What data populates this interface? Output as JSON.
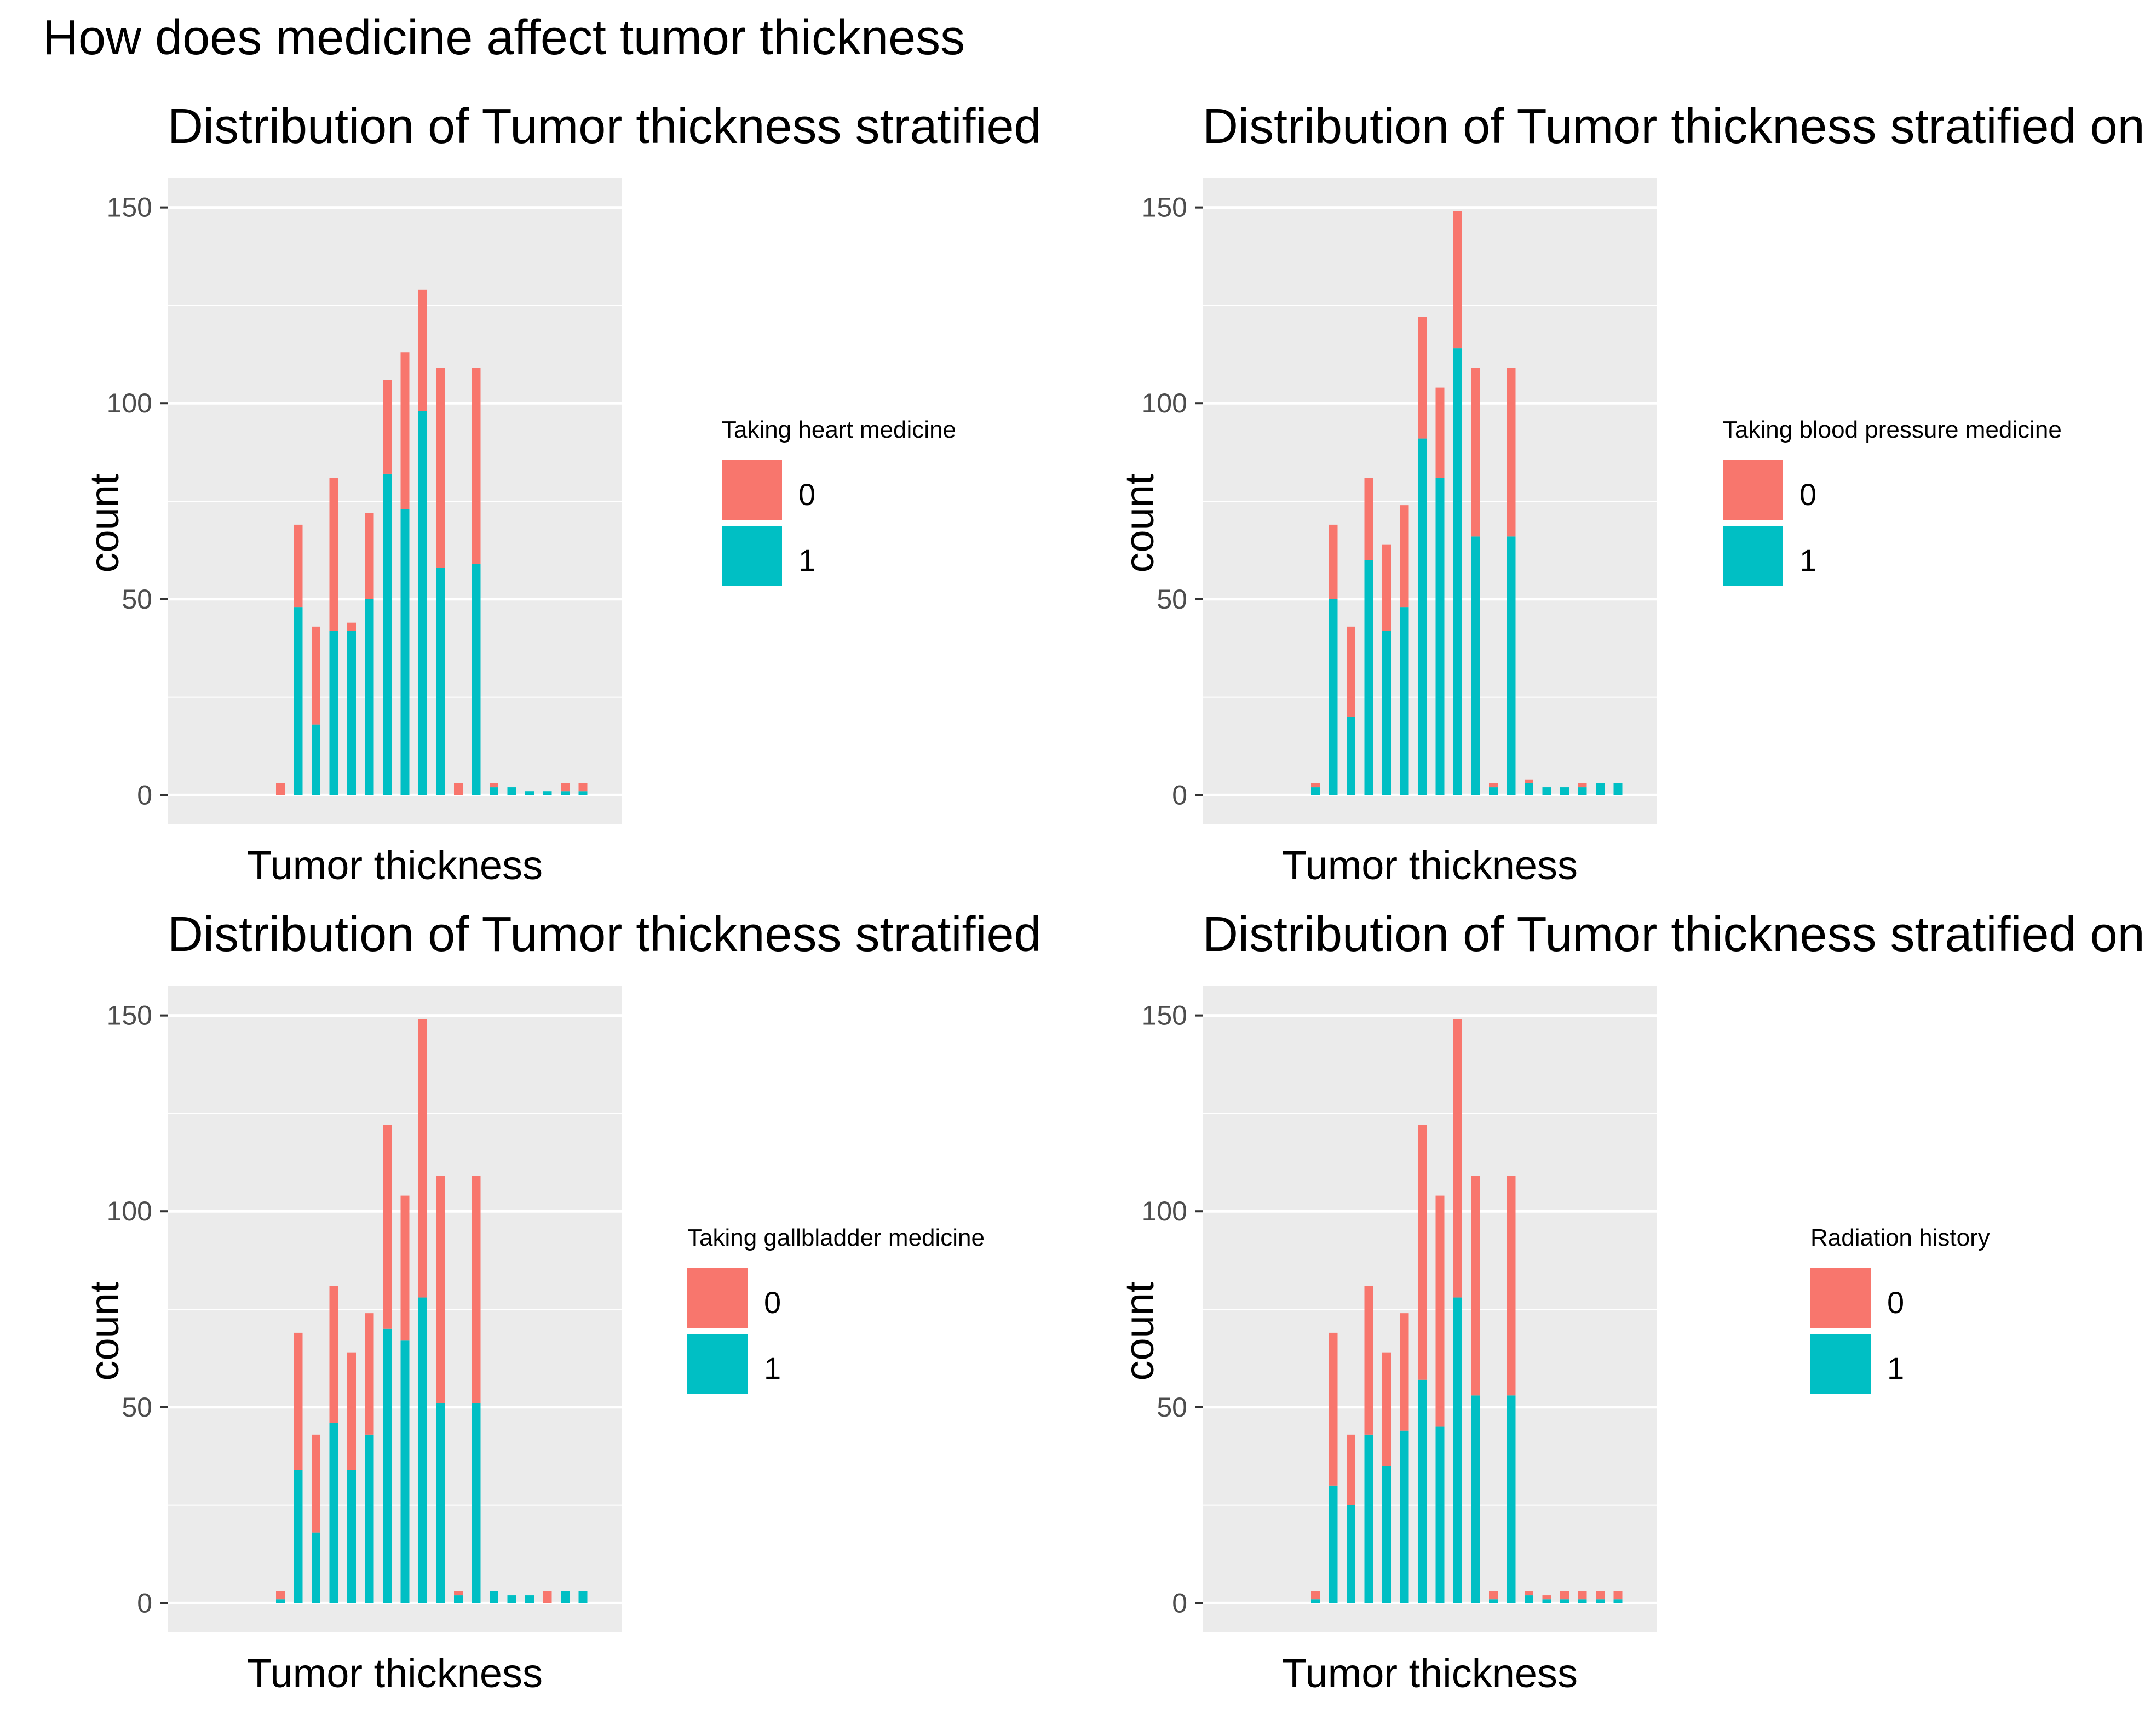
{
  "title": "How does medicine affect tumor thickness",
  "colors": {
    "level_0": "#F8766D",
    "level_1": "#00BFC4",
    "panel_bg": "#EBEBEB",
    "grid": "#FFFFFF"
  },
  "chart_data": [
    {
      "type": "bar",
      "title": "Distribution of Tumor thickness stratified",
      "xlabel": "Tumor thickness",
      "ylabel": "count",
      "ylim": [
        -7.5,
        157.5
      ],
      "yticks": [
        "0",
        "50",
        "100",
        "150"
      ],
      "legend_title": "Taking heart medicine",
      "legend_labels": [
        "0",
        "1"
      ],
      "legend_position": "right",
      "series": [
        {
          "name": "0",
          "values": [
            3,
            21,
            25,
            39,
            2,
            22,
            24,
            40,
            31,
            51,
            3,
            50,
            1,
            0,
            0,
            0,
            2,
            2
          ]
        },
        {
          "name": "1",
          "values": [
            0,
            48,
            18,
            42,
            42,
            50,
            82,
            73,
            98,
            58,
            0,
            59,
            2,
            2,
            1,
            1,
            1,
            1
          ]
        }
      ],
      "totals": [
        3,
        69,
        43,
        81,
        44,
        72,
        106,
        113,
        129,
        109,
        3,
        109,
        3,
        2,
        1,
        1,
        3,
        3
      ]
    },
    {
      "type": "bar",
      "title": "Distribution of Tumor thickness stratified on",
      "xlabel": "Tumor thickness",
      "ylabel": "count",
      "ylim": [
        -7.5,
        157.5
      ],
      "yticks": [
        "0",
        "50",
        "100",
        "150"
      ],
      "legend_title": "Taking blood pressure medicine",
      "legend_labels": [
        "0",
        "1"
      ],
      "legend_position": "right",
      "series": [
        {
          "name": "0",
          "values": [
            1,
            19,
            23,
            21,
            22,
            26,
            31,
            23,
            35,
            43,
            1,
            43,
            1,
            0,
            0,
            1,
            0,
            0
          ]
        },
        {
          "name": "1",
          "values": [
            2,
            50,
            20,
            60,
            42,
            48,
            91,
            81,
            114,
            66,
            2,
            66,
            3,
            2,
            2,
            2,
            3,
            3
          ]
        }
      ]
    },
    {
      "type": "bar",
      "title": "Distribution of Tumor thickness stratified",
      "xlabel": "Tumor thickness",
      "ylabel": "count",
      "ylim": [
        -7.5,
        157.5
      ],
      "yticks": [
        "0",
        "50",
        "100",
        "150"
      ],
      "legend_title": "Taking gallbladder medicine",
      "legend_labels": [
        "0",
        "1"
      ],
      "legend_position": "right",
      "series": [
        {
          "name": "0",
          "values": [
            2,
            35,
            25,
            35,
            30,
            31,
            52,
            37,
            71,
            58,
            1,
            58,
            0,
            0,
            0,
            3,
            0,
            0
          ]
        },
        {
          "name": "1",
          "values": [
            1,
            34,
            18,
            46,
            34,
            43,
            70,
            67,
            78,
            51,
            2,
            51,
            3,
            2,
            2,
            0,
            3,
            3
          ]
        }
      ]
    },
    {
      "type": "bar",
      "title": "Distribution of Tumor thickness stratified on",
      "xlabel": "Tumor thickness",
      "ylabel": "count",
      "ylim": [
        -7.5,
        157.5
      ],
      "yticks": [
        "0",
        "50",
        "100",
        "150"
      ],
      "legend_title": "Radiation history",
      "legend_labels": [
        "0",
        "1"
      ],
      "legend_position": "right",
      "series": [
        {
          "name": "0",
          "values": [
            2,
            39,
            18,
            38,
            29,
            30,
            65,
            59,
            71,
            56,
            2,
            56,
            1,
            1,
            2,
            2,
            2,
            2
          ]
        },
        {
          "name": "1",
          "values": [
            1,
            30,
            25,
            43,
            35,
            44,
            57,
            45,
            78,
            53,
            1,
            53,
            2,
            1,
            1,
            1,
            1,
            1
          ]
        }
      ]
    }
  ]
}
